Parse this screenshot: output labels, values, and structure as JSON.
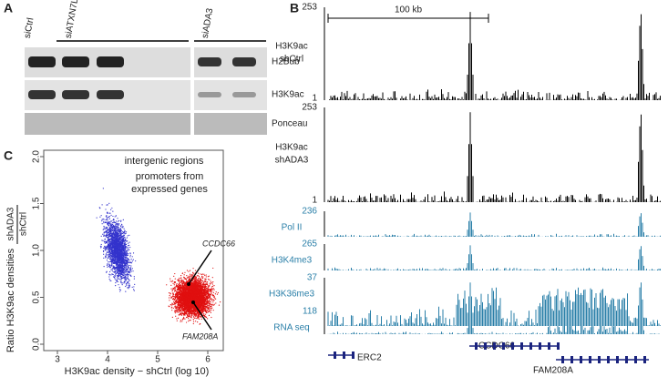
{
  "panels": {
    "A": {
      "label": "A",
      "lanes": [
        "siCtrl",
        "siATXN7L3",
        "siADA3"
      ],
      "rows": [
        "H2Bub",
        "H3K9ac",
        "Ponceau"
      ]
    },
    "B": {
      "label": "B",
      "scale": "100 kb",
      "tracks": [
        {
          "name": [
            "H3K9ac",
            "shCtrl"
          ],
          "max": "253",
          "min": "1"
        },
        {
          "name": [
            "H3K9ac",
            "shADA3"
          ],
          "max": "253",
          "min": "1"
        },
        {
          "name": [
            "Pol II"
          ],
          "max": "236"
        },
        {
          "name": [
            "H3K4me3"
          ],
          "max": "265"
        },
        {
          "name": [
            "H3K36me3"
          ],
          "max": "37"
        },
        {
          "name": [
            "RNA seq"
          ],
          "max": "118"
        }
      ],
      "genes": [
        "CCDC66",
        "ERC2",
        "FAM208A"
      ]
    },
    "C": {
      "label": "C",
      "legend": [
        "intergenic regions",
        "promoters from",
        "expressed genes"
      ],
      "xlabel": "H3K9ac density − shCtrl (log 10)",
      "ylabel": "Ratio H3K9ac densities",
      "yfrac": [
        "shADA3",
        "shCtrl"
      ],
      "xticks": [
        "3",
        "4",
        "5",
        "6"
      ],
      "yticks": [
        "0.0",
        "0.5",
        "1.0",
        "1.5",
        "2.0"
      ],
      "annotations": [
        "CCDC66",
        "FAM208A"
      ]
    }
  }
}
